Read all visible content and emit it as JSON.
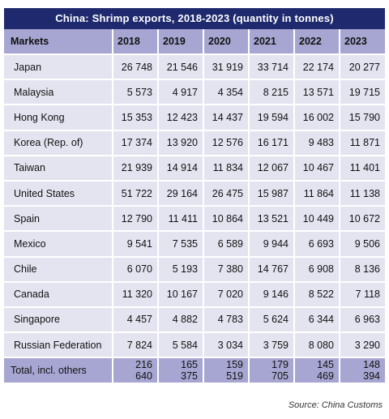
{
  "title": "China:  Shrimp exports, 2018-2023 (quantity in tonnes)",
  "header": {
    "markets": "Markets",
    "years": [
      "2018",
      "2019",
      "2020",
      "2021",
      "2022",
      "2023"
    ]
  },
  "rows": [
    {
      "market": "Japan",
      "values": [
        "26 748",
        "21 546",
        "31 919",
        "33 714",
        "22 174",
        "20 277"
      ]
    },
    {
      "market": "Malaysia",
      "values": [
        "5 573",
        "4 917",
        "4 354",
        "8 215",
        "13 571",
        "19 715"
      ]
    },
    {
      "market": "Hong Kong",
      "values": [
        "15 353",
        "12 423",
        "14 437",
        "19 594",
        "16 002",
        "15 790"
      ]
    },
    {
      "market": "Korea (Rep. of)",
      "values": [
        "17 374",
        "13 920",
        "12 576",
        "16 171",
        "9 483",
        "11 871"
      ]
    },
    {
      "market": "Taiwan",
      "values": [
        "21 939",
        "14 914",
        "11 834",
        "12 067",
        "10 467",
        "11 401"
      ]
    },
    {
      "market": "United States",
      "values": [
        "51 722",
        "29 164",
        "26 475",
        "15 987",
        "11 864",
        "11 138"
      ]
    },
    {
      "market": "Spain",
      "values": [
        "12 790",
        "11 411",
        "10 864",
        "13 521",
        "10 449",
        "10 672"
      ]
    },
    {
      "market": "Mexico",
      "values": [
        "9 541",
        "7 535",
        "6 589",
        "9 944",
        "6 693",
        "9 506"
      ]
    },
    {
      "market": "Chile",
      "values": [
        "6 070",
        "5 193",
        "7 380",
        "14 767",
        "6 908",
        "8 136"
      ]
    },
    {
      "market": "Canada",
      "values": [
        "11 320",
        "10 167",
        "7 020",
        "9 146",
        "8 522",
        "7 118"
      ]
    },
    {
      "market": "Singapore",
      "values": [
        "4 457",
        "4 882",
        "4 783",
        "5 624",
        "6 344",
        "6 963"
      ]
    },
    {
      "market": "Russian Federation",
      "values": [
        "7 824",
        "5 584",
        "3 034",
        "3 759",
        "8 080",
        "3 290"
      ]
    }
  ],
  "total": {
    "market": "Total, incl. others",
    "values": [
      "216 640",
      "165 375",
      "159 519",
      "179 705",
      "145 469",
      "148 394"
    ]
  },
  "source": "Source: China Customs",
  "colors": {
    "title_bg": "#1f2a6e",
    "header_bg": "#a7a6d2",
    "row_bg": "#e4e4f1"
  }
}
